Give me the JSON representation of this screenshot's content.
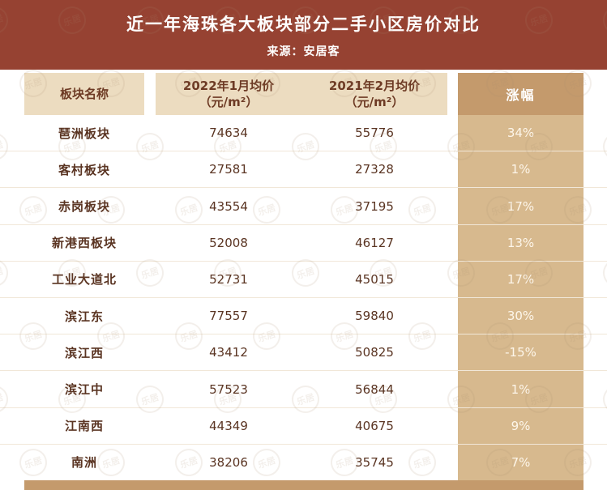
{
  "header": {
    "title": "近一年海珠各大板块部分二手小区房价对比",
    "source": "来源：安居客"
  },
  "chart_data": {
    "type": "table",
    "title": "近一年海珠各大板块部分二手小区房价对比",
    "source": "来源：安居客",
    "columns": [
      "板块名称",
      "2022年1月均价（元/m²）",
      "2021年2月均价（元/m²）",
      "涨幅"
    ],
    "rows": [
      {
        "name": "琶洲板块",
        "price_2022_01": 74634,
        "price_2021_02": 55776,
        "change": "34%"
      },
      {
        "name": "客村板块",
        "price_2022_01": 27581,
        "price_2021_02": 27328,
        "change": "1%"
      },
      {
        "name": "赤岗板块",
        "price_2022_01": 43554,
        "price_2021_02": 37195,
        "change": "17%"
      },
      {
        "name": "新港西板块",
        "price_2022_01": 52008,
        "price_2021_02": 46127,
        "change": "13%"
      },
      {
        "name": "工业大道北",
        "price_2022_01": 52731,
        "price_2021_02": 45015,
        "change": "17%"
      },
      {
        "name": "滨江东",
        "price_2022_01": 77557,
        "price_2021_02": 59840,
        "change": "30%"
      },
      {
        "name": "滨江西",
        "price_2022_01": 43412,
        "price_2021_02": 50825,
        "change": "-15%"
      },
      {
        "name": "滨江中",
        "price_2022_01": 57523,
        "price_2021_02": 56844,
        "change": "1%"
      },
      {
        "name": "江南西",
        "price_2022_01": 44349,
        "price_2021_02": 40675,
        "change": "9%"
      },
      {
        "name": "南洲",
        "price_2022_01": 38206,
        "price_2021_02": 35745,
        "change": "7%"
      }
    ]
  },
  "table": {
    "headers": {
      "name": "板块名称",
      "p1_line1": "2022年1月均价",
      "p1_line2": "（元/m²）",
      "p2_line1": "2021年2月均价",
      "p2_line2": "（元/m²）",
      "change": "涨幅"
    }
  },
  "watermark": {
    "text": "乐居"
  },
  "colors": {
    "banner": "#964232",
    "header_beige": "#ecdcc0",
    "tan_dark": "#c49a6c",
    "tan_light": "#d7b98e",
    "body_text": "#5a3422"
  }
}
